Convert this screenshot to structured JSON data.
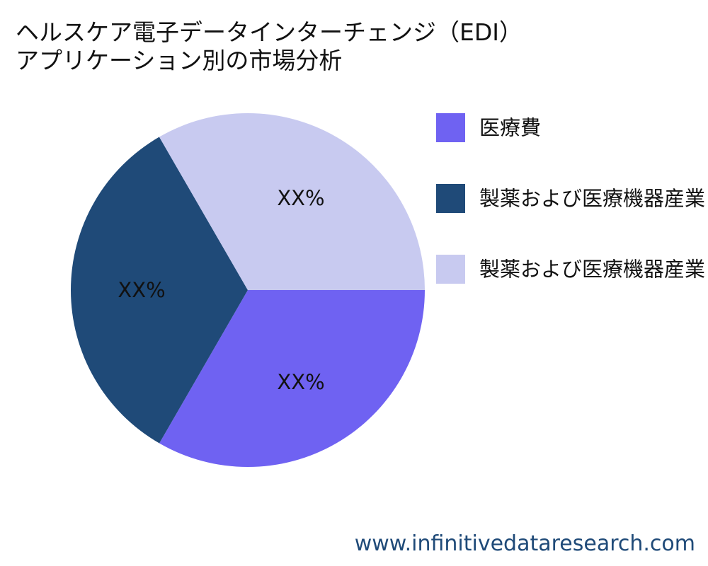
{
  "title": {
    "line1": "ヘルスケア電子データインターチェンジ（EDI）",
    "line2": "アプリケーション別の市場分析"
  },
  "chart_data": {
    "type": "pie",
    "labels": [
      "医療費",
      "製薬および医療機器産業",
      "製薬および医療機器産業"
    ],
    "values": [
      33.33,
      33.33,
      33.34
    ],
    "slice_labels": [
      "XX%",
      "XX%",
      "XX%"
    ],
    "colors": [
      "#6f62f2",
      "#1f4a78",
      "#c8caf0"
    ],
    "legend_position": "right"
  },
  "footer": {
    "text": "www.infinitivedataresearch.com"
  }
}
